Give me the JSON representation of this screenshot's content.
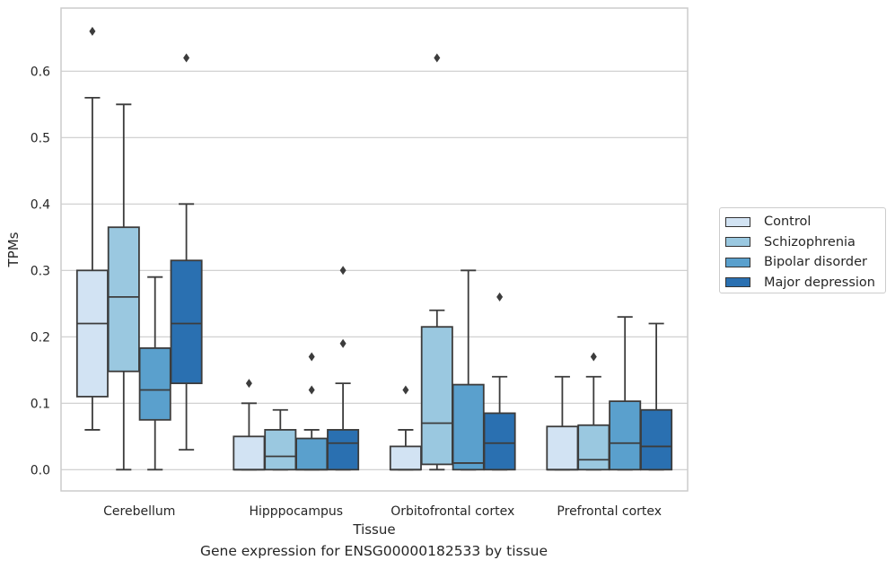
{
  "caption": "Gene expression for ENSG00000182533 by tissue",
  "chart_data": {
    "type": "box",
    "xlabel": "Tissue",
    "ylabel": "TPMs",
    "ylim": [
      -0.032,
      0.695
    ],
    "yticks": [
      0.0,
      0.1,
      0.2,
      0.3,
      0.4,
      0.5,
      0.6
    ],
    "ytick_labels": [
      "0.0",
      "0.1",
      "0.2",
      "0.3",
      "0.4",
      "0.5",
      "0.6"
    ],
    "grid": "horizontal",
    "legend_position": "right",
    "categories": [
      "Cerebellum",
      "Hipppocampus",
      "Orbitofrontal cortex",
      "Prefrontal cortex"
    ],
    "series": [
      {
        "name": "Control",
        "color": "#d2e3f3",
        "boxes": [
          {
            "q1": 0.11,
            "median": 0.22,
            "q3": 0.3,
            "whisker_low": 0.06,
            "whisker_high": 0.56,
            "outliers": [
              0.66
            ]
          },
          {
            "q1": 0.0,
            "median": 0.0,
            "q3": 0.05,
            "whisker_low": 0.0,
            "whisker_high": 0.1,
            "outliers": [
              0.13
            ]
          },
          {
            "q1": 0.0,
            "median": 0.0,
            "q3": 0.035,
            "whisker_low": 0.0,
            "whisker_high": 0.06,
            "outliers": [
              0.12
            ]
          },
          {
            "q1": 0.0,
            "median": 0.0,
            "q3": 0.065,
            "whisker_low": 0.0,
            "whisker_high": 0.14,
            "outliers": []
          }
        ]
      },
      {
        "name": "Schizophrenia",
        "color": "#9ac8e0",
        "boxes": [
          {
            "q1": 0.148,
            "median": 0.26,
            "q3": 0.365,
            "whisker_low": 0.0,
            "whisker_high": 0.55,
            "outliers": []
          },
          {
            "q1": 0.0,
            "median": 0.02,
            "q3": 0.06,
            "whisker_low": 0.0,
            "whisker_high": 0.09,
            "outliers": []
          },
          {
            "q1": 0.008,
            "median": 0.07,
            "q3": 0.215,
            "whisker_low": 0.0,
            "whisker_high": 0.24,
            "outliers": [
              0.62
            ]
          },
          {
            "q1": 0.0,
            "median": 0.015,
            "q3": 0.067,
            "whisker_low": 0.0,
            "whisker_high": 0.14,
            "outliers": [
              0.17
            ]
          }
        ]
      },
      {
        "name": "Bipolar disorder",
        "color": "#5aa0cd",
        "boxes": [
          {
            "q1": 0.075,
            "median": 0.12,
            "q3": 0.183,
            "whisker_low": 0.0,
            "whisker_high": 0.29,
            "outliers": []
          },
          {
            "q1": 0.0,
            "median": 0.0,
            "q3": 0.047,
            "whisker_low": 0.0,
            "whisker_high": 0.06,
            "outliers": [
              0.12,
              0.17
            ]
          },
          {
            "q1": 0.0,
            "median": 0.01,
            "q3": 0.128,
            "whisker_low": 0.0,
            "whisker_high": 0.3,
            "outliers": []
          },
          {
            "q1": 0.0,
            "median": 0.04,
            "q3": 0.103,
            "whisker_low": 0.0,
            "whisker_high": 0.23,
            "outliers": []
          }
        ]
      },
      {
        "name": "Major depression",
        "color": "#2a70b1",
        "boxes": [
          {
            "q1": 0.13,
            "median": 0.22,
            "q3": 0.315,
            "whisker_low": 0.03,
            "whisker_high": 0.4,
            "outliers": [
              0.62
            ]
          },
          {
            "q1": 0.0,
            "median": 0.04,
            "q3": 0.06,
            "whisker_low": 0.0,
            "whisker_high": 0.13,
            "outliers": [
              0.19,
              0.3
            ]
          },
          {
            "q1": 0.0,
            "median": 0.04,
            "q3": 0.085,
            "whisker_low": 0.0,
            "whisker_high": 0.14,
            "outliers": [
              0.26
            ]
          },
          {
            "q1": 0.0,
            "median": 0.035,
            "q3": 0.09,
            "whisker_low": 0.0,
            "whisker_high": 0.22,
            "outliers": []
          }
        ]
      }
    ]
  }
}
